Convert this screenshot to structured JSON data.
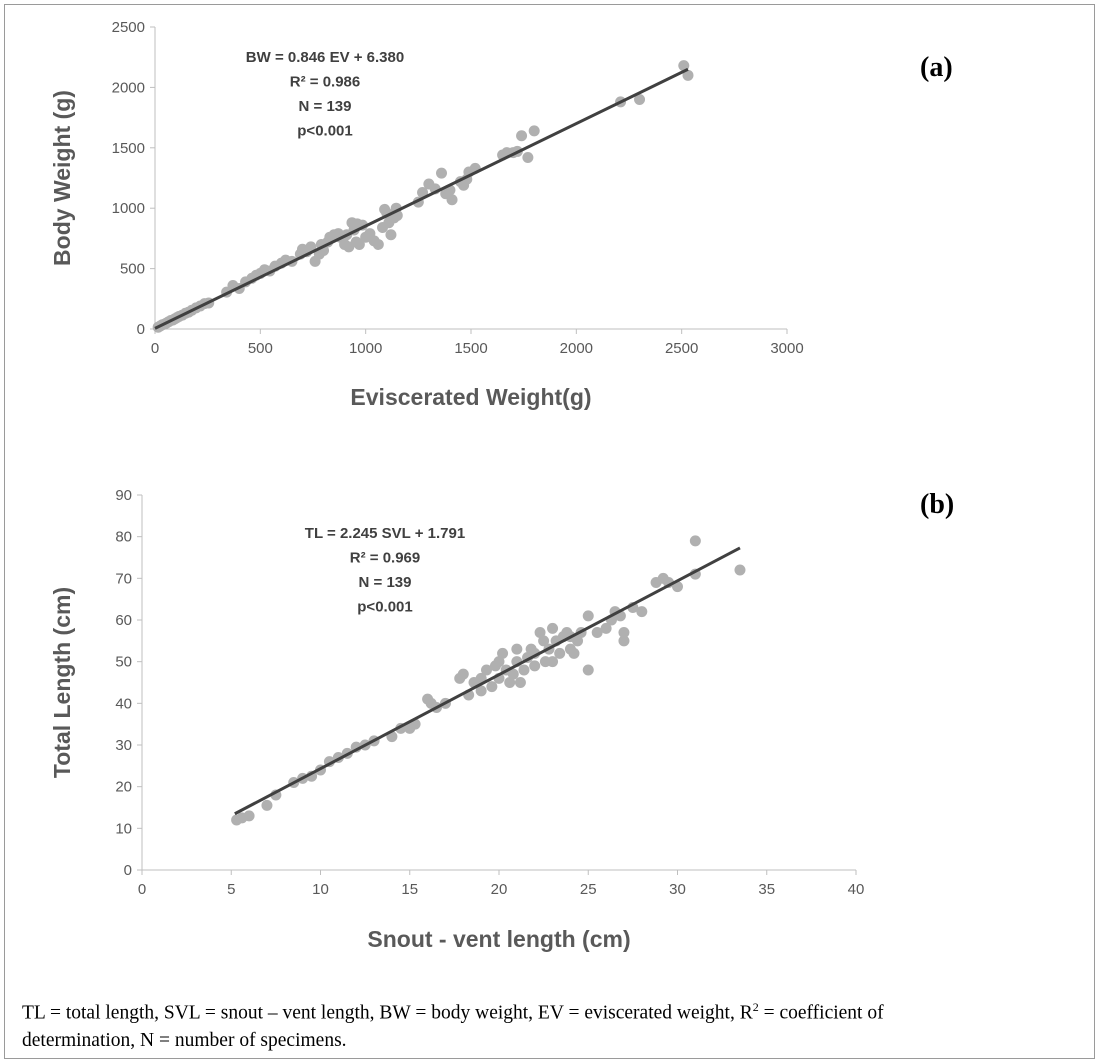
{
  "chart_data": [
    {
      "type": "scatter",
      "panel_label": "(a)",
      "xlabel": "Eviscerated Weight(g)",
      "ylabel": "Body Weight  (g)",
      "xlim": [
        0,
        3000
      ],
      "ylim": [
        0,
        2500
      ],
      "xticks": [
        "0",
        "500",
        "1000",
        "1500",
        "2000",
        "2500",
        "3000"
      ],
      "yticks": [
        "0",
        "500",
        "1000",
        "1500",
        "2000",
        "2500"
      ],
      "annotation": [
        "BW = 0.846 EV + 6.380",
        "R² = 0.986",
        "N = 139",
        "p<0.001"
      ],
      "trendline": {
        "x": [
          0,
          2530
        ],
        "y": [
          5,
          2150
        ]
      },
      "colors": {
        "points": "#b0b0b0",
        "line": "#404040"
      },
      "points": [
        [
          15,
          15
        ],
        [
          25,
          25
        ],
        [
          35,
          35
        ],
        [
          45,
          40
        ],
        [
          55,
          50
        ],
        [
          65,
          60
        ],
        [
          75,
          70
        ],
        [
          85,
          75
        ],
        [
          95,
          85
        ],
        [
          105,
          95
        ],
        [
          115,
          105
        ],
        [
          130,
          115
        ],
        [
          145,
          130
        ],
        [
          160,
          140
        ],
        [
          175,
          155
        ],
        [
          195,
          175
        ],
        [
          215,
          190
        ],
        [
          235,
          210
        ],
        [
          255,
          215
        ],
        [
          340,
          305
        ],
        [
          370,
          360
        ],
        [
          400,
          335
        ],
        [
          430,
          390
        ],
        [
          460,
          420
        ],
        [
          480,
          445
        ],
        [
          500,
          460
        ],
        [
          520,
          490
        ],
        [
          545,
          480
        ],
        [
          570,
          520
        ],
        [
          600,
          545
        ],
        [
          620,
          570
        ],
        [
          650,
          560
        ],
        [
          690,
          620
        ],
        [
          700,
          660
        ],
        [
          720,
          640
        ],
        [
          740,
          680
        ],
        [
          760,
          560
        ],
        [
          780,
          620
        ],
        [
          790,
          700
        ],
        [
          800,
          650
        ],
        [
          820,
          720
        ],
        [
          830,
          760
        ],
        [
          850,
          780
        ],
        [
          870,
          790
        ],
        [
          880,
          760
        ],
        [
          900,
          700
        ],
        [
          910,
          780
        ],
        [
          920,
          680
        ],
        [
          935,
          880
        ],
        [
          945,
          820
        ],
        [
          955,
          720
        ],
        [
          960,
          870
        ],
        [
          970,
          700
        ],
        [
          985,
          860
        ],
        [
          1000,
          760
        ],
        [
          1020,
          790
        ],
        [
          1040,
          730
        ],
        [
          1060,
          700
        ],
        [
          1080,
          840
        ],
        [
          1090,
          990
        ],
        [
          1100,
          960
        ],
        [
          1110,
          880
        ],
        [
          1120,
          780
        ],
        [
          1135,
          920
        ],
        [
          1145,
          1000
        ],
        [
          1150,
          940
        ],
        [
          1250,
          1050
        ],
        [
          1270,
          1130
        ],
        [
          1300,
          1200
        ],
        [
          1330,
          1160
        ],
        [
          1360,
          1290
        ],
        [
          1380,
          1120
        ],
        [
          1400,
          1150
        ],
        [
          1410,
          1070
        ],
        [
          1450,
          1220
        ],
        [
          1465,
          1190
        ],
        [
          1480,
          1240
        ],
        [
          1490,
          1300
        ],
        [
          1520,
          1330
        ],
        [
          1650,
          1440
        ],
        [
          1670,
          1460
        ],
        [
          1700,
          1460
        ],
        [
          1720,
          1470
        ],
        [
          1740,
          1600
        ],
        [
          1770,
          1420
        ],
        [
          1800,
          1640
        ],
        [
          2210,
          1880
        ],
        [
          2300,
          1900
        ],
        [
          2510,
          2180
        ],
        [
          2530,
          2100
        ]
      ]
    },
    {
      "type": "scatter",
      "panel_label": "(b)",
      "xlabel": "Snout - vent length (cm)",
      "ylabel": "Total Length  (cm)",
      "xlim": [
        0,
        40
      ],
      "ylim": [
        0,
        90
      ],
      "xticks": [
        "0",
        "5",
        "10",
        "15",
        "20",
        "25",
        "30",
        "35",
        "40"
      ],
      "yticks": [
        "0",
        "10",
        "20",
        "30",
        "40",
        "50",
        "60",
        "70",
        "80",
        "90"
      ],
      "annotation": [
        "TL = 2.245 SVL + 1.791",
        "R² = 0.969",
        "N = 139",
        "p<0.001"
      ],
      "trendline": {
        "x": [
          5.2,
          33.5
        ],
        "y": [
          13.5,
          77.3
        ]
      },
      "colors": {
        "points": "#b0b0b0",
        "line": "#404040"
      },
      "points": [
        [
          5.3,
          12
        ],
        [
          5.6,
          12.5
        ],
        [
          6,
          13
        ],
        [
          7,
          15.5
        ],
        [
          7.5,
          18
        ],
        [
          8.5,
          21
        ],
        [
          9,
          22
        ],
        [
          9.5,
          22.5
        ],
        [
          10,
          24
        ],
        [
          10.5,
          26
        ],
        [
          11,
          27
        ],
        [
          11.5,
          28
        ],
        [
          12,
          29.5
        ],
        [
          12.5,
          30
        ],
        [
          13,
          31
        ],
        [
          14,
          32
        ],
        [
          14.5,
          34
        ],
        [
          15,
          34
        ],
        [
          15.3,
          35
        ],
        [
          16,
          41
        ],
        [
          16.2,
          40
        ],
        [
          16.5,
          39
        ],
        [
          17,
          40
        ],
        [
          17.8,
          46
        ],
        [
          18,
          47
        ],
        [
          18.3,
          42
        ],
        [
          18.6,
          45
        ],
        [
          19,
          46
        ],
        [
          19,
          43
        ],
        [
          19.3,
          48
        ],
        [
          19.6,
          44
        ],
        [
          19.8,
          49
        ],
        [
          20,
          50
        ],
        [
          20,
          46
        ],
        [
          20.2,
          52
        ],
        [
          20.4,
          48
        ],
        [
          20.6,
          45
        ],
        [
          20.8,
          47
        ],
        [
          21,
          50
        ],
        [
          21,
          53
        ],
        [
          21.2,
          45
        ],
        [
          21.4,
          48
        ],
        [
          21.6,
          51
        ],
        [
          21.8,
          53
        ],
        [
          22,
          49
        ],
        [
          22,
          52
        ],
        [
          22.3,
          57
        ],
        [
          22.5,
          55
        ],
        [
          22.6,
          50
        ],
        [
          22.8,
          53
        ],
        [
          23,
          50
        ],
        [
          23,
          58
        ],
        [
          23.2,
          55
        ],
        [
          23.4,
          52
        ],
        [
          23.6,
          56
        ],
        [
          23.8,
          57
        ],
        [
          24,
          53
        ],
        [
          24,
          56
        ],
        [
          24.2,
          52
        ],
        [
          24.4,
          55
        ],
        [
          24.6,
          57
        ],
        [
          25,
          61
        ],
        [
          25,
          48
        ],
        [
          25.5,
          57
        ],
        [
          26,
          58
        ],
        [
          26.3,
          60
        ],
        [
          26.5,
          62
        ],
        [
          26.8,
          61
        ],
        [
          27,
          57
        ],
        [
          27,
          55
        ],
        [
          27.5,
          63
        ],
        [
          28,
          62
        ],
        [
          28.8,
          69
        ],
        [
          29.2,
          70
        ],
        [
          29.5,
          69
        ],
        [
          30,
          68
        ],
        [
          31,
          71
        ],
        [
          31,
          79
        ],
        [
          33.5,
          72
        ]
      ]
    }
  ],
  "caption": {
    "line1_before_sup": "TL = total length, SVL = snout – vent length, BW = body weight, EV = eviscerated weight, R",
    "sup": "2",
    "line1_after_sup": " = coefficient of",
    "line2": "determination, N = number of specimens."
  }
}
